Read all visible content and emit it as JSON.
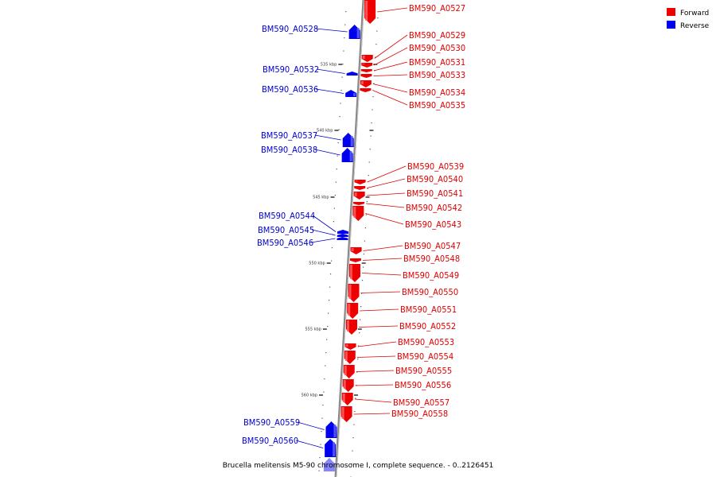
{
  "colors": {
    "forward": "#ee0000",
    "forward_light": "#ff6666",
    "reverse": "#0000ee",
    "reverse_light": "#6666ff",
    "backbone": "#888888",
    "label_forward": "#dd0000",
    "label_reverse": "#0000cc"
  },
  "legend": [
    {
      "label": "Forward",
      "color": "#ee0000"
    },
    {
      "label": "Reverse",
      "color": "#0000ee"
    }
  ],
  "caption": "Brucella melitensis M5-90 chromosome I, complete sequence. - 0..2126451",
  "scale_ticks": [
    "535 kbp",
    "540 kbp",
    "545 kbp",
    "550 kbp",
    "555 kbp",
    "560 kbp"
  ],
  "genes_forward": [
    "BM590_A0527",
    "BM590_A0529",
    "BM590_A0530",
    "BM590_A0531",
    "BM590_A0533",
    "BM590_A0534",
    "BM590_A0535",
    "BM590_A0539",
    "BM590_A0540",
    "BM590_A0541",
    "BM590_A0542",
    "BM590_A0543",
    "BM590_A0547",
    "BM590_A0548",
    "BM590_A0549",
    "BM590_A0550",
    "BM590_A0551",
    "BM590_A0552",
    "BM590_A0553",
    "BM590_A0554",
    "BM590_A0555",
    "BM590_A0556",
    "BM590_A0557",
    "BM590_A0558"
  ],
  "genes_reverse": [
    "BM590_A0528",
    "BM590_A0532",
    "BM590_A0536",
    "BM590_A0537",
    "BM590_A0538",
    "BM590_A0544",
    "BM590_A0545",
    "BM590_A0546",
    "BM590_A0559",
    "BM590_A0560"
  ]
}
